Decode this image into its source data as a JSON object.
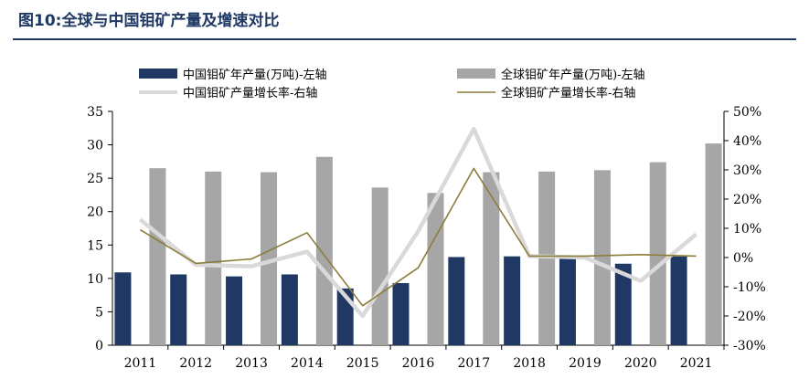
{
  "title": "图10:全球与中国钼矿产量及增速对比",
  "chart_data": {
    "type": "bar",
    "categories": [
      "2011",
      "2012",
      "2013",
      "2014",
      "2015",
      "2016",
      "2017",
      "2018",
      "2019",
      "2020",
      "2021"
    ],
    "series": [
      {
        "name": "中国钼矿年产量(万吨)-左轴",
        "kind": "bar",
        "axis": "left",
        "color": "#1f3864",
        "values": [
          10.9,
          10.6,
          10.3,
          10.6,
          8.5,
          9.3,
          13.2,
          13.3,
          13.0,
          12.2,
          13.3
        ]
      },
      {
        "name": "全球钼矿年产量(万吨)-左轴",
        "kind": "bar",
        "axis": "left",
        "color": "#a6a6a6",
        "values": [
          26.5,
          26.0,
          25.9,
          28.2,
          23.6,
          22.8,
          25.9,
          26.0,
          26.2,
          27.4,
          30.2
        ]
      },
      {
        "name": "中国钼矿产量增长率-右轴",
        "kind": "line",
        "axis": "right",
        "color": "#d9d9d9",
        "values": [
          13.0,
          -2.5,
          -3.0,
          2.0,
          -20.0,
          9.0,
          44.0,
          0.5,
          0.0,
          -8.0,
          8.0
        ]
      },
      {
        "name": "全球钼矿产量增长率-右轴",
        "kind": "line",
        "axis": "right",
        "color": "#8c7d3a",
        "values": [
          9.5,
          -2.0,
          -0.5,
          8.5,
          -16.5,
          -3.5,
          30.5,
          0.5,
          0.5,
          1.0,
          0.5
        ]
      }
    ],
    "y_left": {
      "min": 0,
      "max": 35,
      "step": 5,
      "ticks": [
        "0",
        "5",
        "10",
        "15",
        "20",
        "25",
        "30",
        "35"
      ]
    },
    "y_right": {
      "min": -30,
      "max": 50,
      "step": 10,
      "ticks": [
        "-30%",
        "-20%",
        "-10%",
        "0%",
        "10%",
        "20%",
        "30%",
        "40%",
        "50%"
      ]
    },
    "legend_position": "top",
    "grid": false
  }
}
